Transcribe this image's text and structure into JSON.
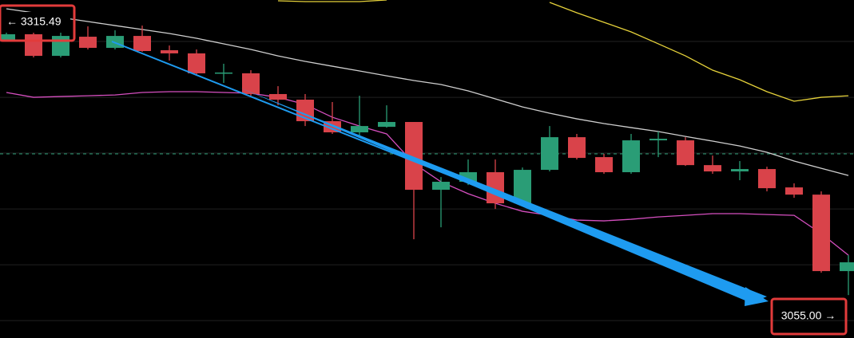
{
  "chart_data": {
    "type": "candlestick",
    "ylim": [
      3034.5,
      3334.6
    ],
    "ygrid": [
      3297.8,
      3248.2,
      3198.7,
      3149.1,
      3099.5,
      3050.0
    ],
    "up_color": "#2a9d76",
    "down_color": "#d9434a",
    "open": [
      3299.2,
      3304.2,
      3285.0,
      3302.0,
      3292.1,
      3302.7,
      3290.0,
      3287.2,
      3269.5,
      3269.5,
      3251.1,
      3246.1,
      3227.0,
      3217.1,
      3222.0,
      3226.3,
      3166.1,
      3173.2,
      3181.7,
      3154.1,
      3183.8,
      3212.8,
      3195.1,
      3181.7,
      3210.0,
      3210.0,
      3188.0,
      3182.4,
      3184.5,
      3168.2,
      3161.8,
      3093.9
    ],
    "high": [
      3306.3,
      3309.8,
      3307.7,
      3311.2,
      3307.7,
      3311.9,
      3294.2,
      3290.7,
      3278.0,
      3272.3,
      3258.1,
      3251.1,
      3244.0,
      3249.6,
      3241.1,
      3226.3,
      3177.4,
      3193.0,
      3193.0,
      3185.9,
      3222.7,
      3215.7,
      3198.0,
      3215.7,
      3217.8,
      3212.8,
      3196.5,
      3191.6,
      3186.6,
      3171.8,
      3164.7,
      3108.0
    ],
    "low": [
      3297.8,
      3283.6,
      3283.6,
      3290.7,
      3290.7,
      3288.6,
      3280.8,
      3268.0,
      3261.0,
      3249.6,
      3241.1,
      3222.7,
      3215.7,
      3214.2,
      3221.3,
      3122.2,
      3132.8,
      3170.3,
      3149.1,
      3151.9,
      3182.4,
      3193.0,
      3180.3,
      3180.3,
      3195.1,
      3187.3,
      3180.3,
      3174.6,
      3164.7,
      3159.0,
      3092.5,
      3072.6
    ],
    "close": [
      3304.2,
      3285.0,
      3302.7,
      3292.1,
      3302.7,
      3289.3,
      3287.2,
      3269.5,
      3270.2,
      3251.1,
      3246.1,
      3227.0,
      3217.1,
      3222.7,
      3226.3,
      3166.1,
      3173.2,
      3181.7,
      3154.1,
      3183.8,
      3212.8,
      3194.4,
      3181.7,
      3210.0,
      3211.4,
      3188.0,
      3182.4,
      3184.5,
      3167.5,
      3161.8,
      3093.9,
      3101.7
    ],
    "lines": [
      {
        "color": "#cfcfcf",
        "values": [
          3326.8,
          3323.3,
          3319.0,
          3315.5,
          3311.9,
          3308.4,
          3304.9,
          3300.6,
          3295.7,
          3290.7,
          3285.0,
          3280.1,
          3275.8,
          3271.6,
          3267.3,
          3263.1,
          3259.6,
          3253.9,
          3246.8,
          3239.7,
          3234.1,
          3229.1,
          3224.9,
          3221.3,
          3217.8,
          3213.5,
          3209.3,
          3205.0,
          3199.4,
          3191.6,
          3185.2,
          3178.8
        ]
      },
      {
        "color": "#d64fc0",
        "values": [
          3252.5,
          3248.2,
          3248.9,
          3249.6,
          3250.3,
          3252.5,
          3253.2,
          3253.2,
          3252.5,
          3251.8,
          3248.2,
          3241.9,
          3230.5,
          3222.7,
          3215.7,
          3189.5,
          3173.2,
          3162.6,
          3154.1,
          3147.0,
          3143.4,
          3139.2,
          3138.5,
          3139.9,
          3142.0,
          3143.4,
          3144.9,
          3144.9,
          3144.1,
          3143.4,
          3127.2,
          3108.0
        ]
      },
      {
        "color": "#e6d23a",
        "values": [
          null,
          null,
          null,
          null,
          null,
          null,
          null,
          null,
          null,
          null,
          3333.9,
          3333.2,
          3333.2,
          3333.2,
          3334.6,
          null,
          null,
          null,
          null,
          null,
          3332.5,
          3323.3,
          3314.8,
          3306.3,
          3295.7,
          3285.0,
          3272.3,
          3263.8,
          3253.2,
          3244.7,
          3248.2,
          3249.6
        ]
      }
    ],
    "price_line": 3198.0,
    "annotations": [
      "← 3315.49",
      "3055.00 →"
    ]
  }
}
